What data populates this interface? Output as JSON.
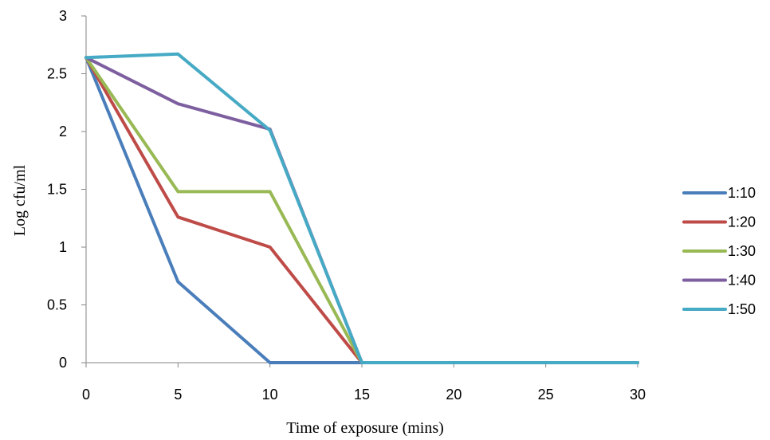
{
  "chart_data": {
    "type": "line",
    "xlabel": "Time of exposure (mins)",
    "ylabel": "Log cfu/ml",
    "xlim": [
      0,
      30
    ],
    "ylim": [
      0,
      3
    ],
    "xticks": [
      0,
      5,
      10,
      15,
      20,
      25,
      30
    ],
    "yticks": [
      0,
      0.5,
      1,
      1.5,
      2,
      2.5,
      3
    ],
    "ytick_labels": [
      "0",
      "0.5",
      "1",
      "1.5",
      "2",
      "2.5",
      "3"
    ],
    "grid": false,
    "legend_position": "right",
    "x": [
      0,
      5,
      10,
      15,
      30
    ],
    "series": [
      {
        "name": "1:10",
        "color": "#4A7EBB",
        "values": [
          2.64,
          0.7,
          0.0,
          0.0,
          0.0
        ]
      },
      {
        "name": "1:20",
        "color": "#BE4B48",
        "values": [
          2.64,
          1.26,
          1.0,
          0.0,
          0.0
        ]
      },
      {
        "name": "1:30",
        "color": "#98B954",
        "values": [
          2.64,
          1.48,
          1.48,
          0.0,
          0.0
        ]
      },
      {
        "name": "1:40",
        "color": "#7D5FA0",
        "values": [
          2.64,
          2.24,
          2.02,
          0.0,
          0.0
        ]
      },
      {
        "name": "1:50",
        "color": "#46AAC5",
        "values": [
          2.64,
          2.67,
          2.01,
          0.0,
          0.0
        ]
      }
    ]
  }
}
